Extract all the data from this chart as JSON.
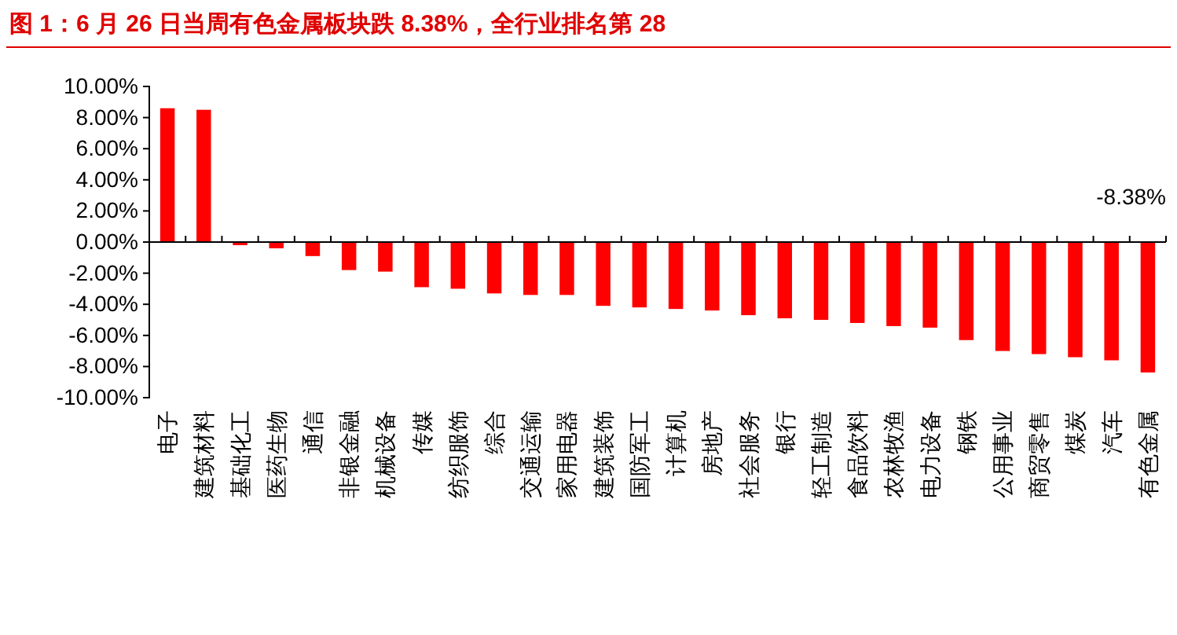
{
  "chart_data": {
    "type": "bar",
    "title": "图 1：6 月 26 日当周有色金属板块跌 8.38%，全行业排名第 28",
    "categories": [
      "电子",
      "建筑材料",
      "基础化工",
      "医药生物",
      "通信",
      "非银金融",
      "机械设备",
      "传媒",
      "纺织服饰",
      "综合",
      "交通运输",
      "家用电器",
      "建筑装饰",
      "国防军工",
      "计算机",
      "房地产",
      "社会服务",
      "银行",
      "轻工制造",
      "食品饮料",
      "农林牧渔",
      "电力设备",
      "钢铁",
      "公用事业",
      "商贸零售",
      "煤炭",
      "汽车",
      "有色金属"
    ],
    "values": [
      8.6,
      8.5,
      -0.2,
      -0.4,
      -0.9,
      -1.8,
      -1.9,
      -2.9,
      -3.0,
      -3.3,
      -3.4,
      -3.4,
      -4.1,
      -4.2,
      -4.3,
      -4.4,
      -4.7,
      -4.9,
      -5.0,
      -5.2,
      -5.4,
      -5.5,
      -6.3,
      -7.0,
      -7.2,
      -7.4,
      -7.6,
      -8.38
    ],
    "color": "#ff0000",
    "ylim": [
      -10,
      10
    ],
    "yticks": [
      {
        "value": -10,
        "label": "-10.00%"
      },
      {
        "value": -8,
        "label": "-8.00%"
      },
      {
        "value": -6,
        "label": "-6.00%"
      },
      {
        "value": -4,
        "label": "-4.00%"
      },
      {
        "value": -2,
        "label": "-2.00%"
      },
      {
        "value": 0,
        "label": "0.00%"
      },
      {
        "value": 2,
        "label": "2.00%"
      },
      {
        "value": 4,
        "label": "4.00%"
      },
      {
        "value": 6,
        "label": "6.00%"
      },
      {
        "value": 8,
        "label": "8.00%"
      },
      {
        "value": 10,
        "label": "10.00%"
      }
    ],
    "annotations": [
      "-8.38%"
    ]
  }
}
